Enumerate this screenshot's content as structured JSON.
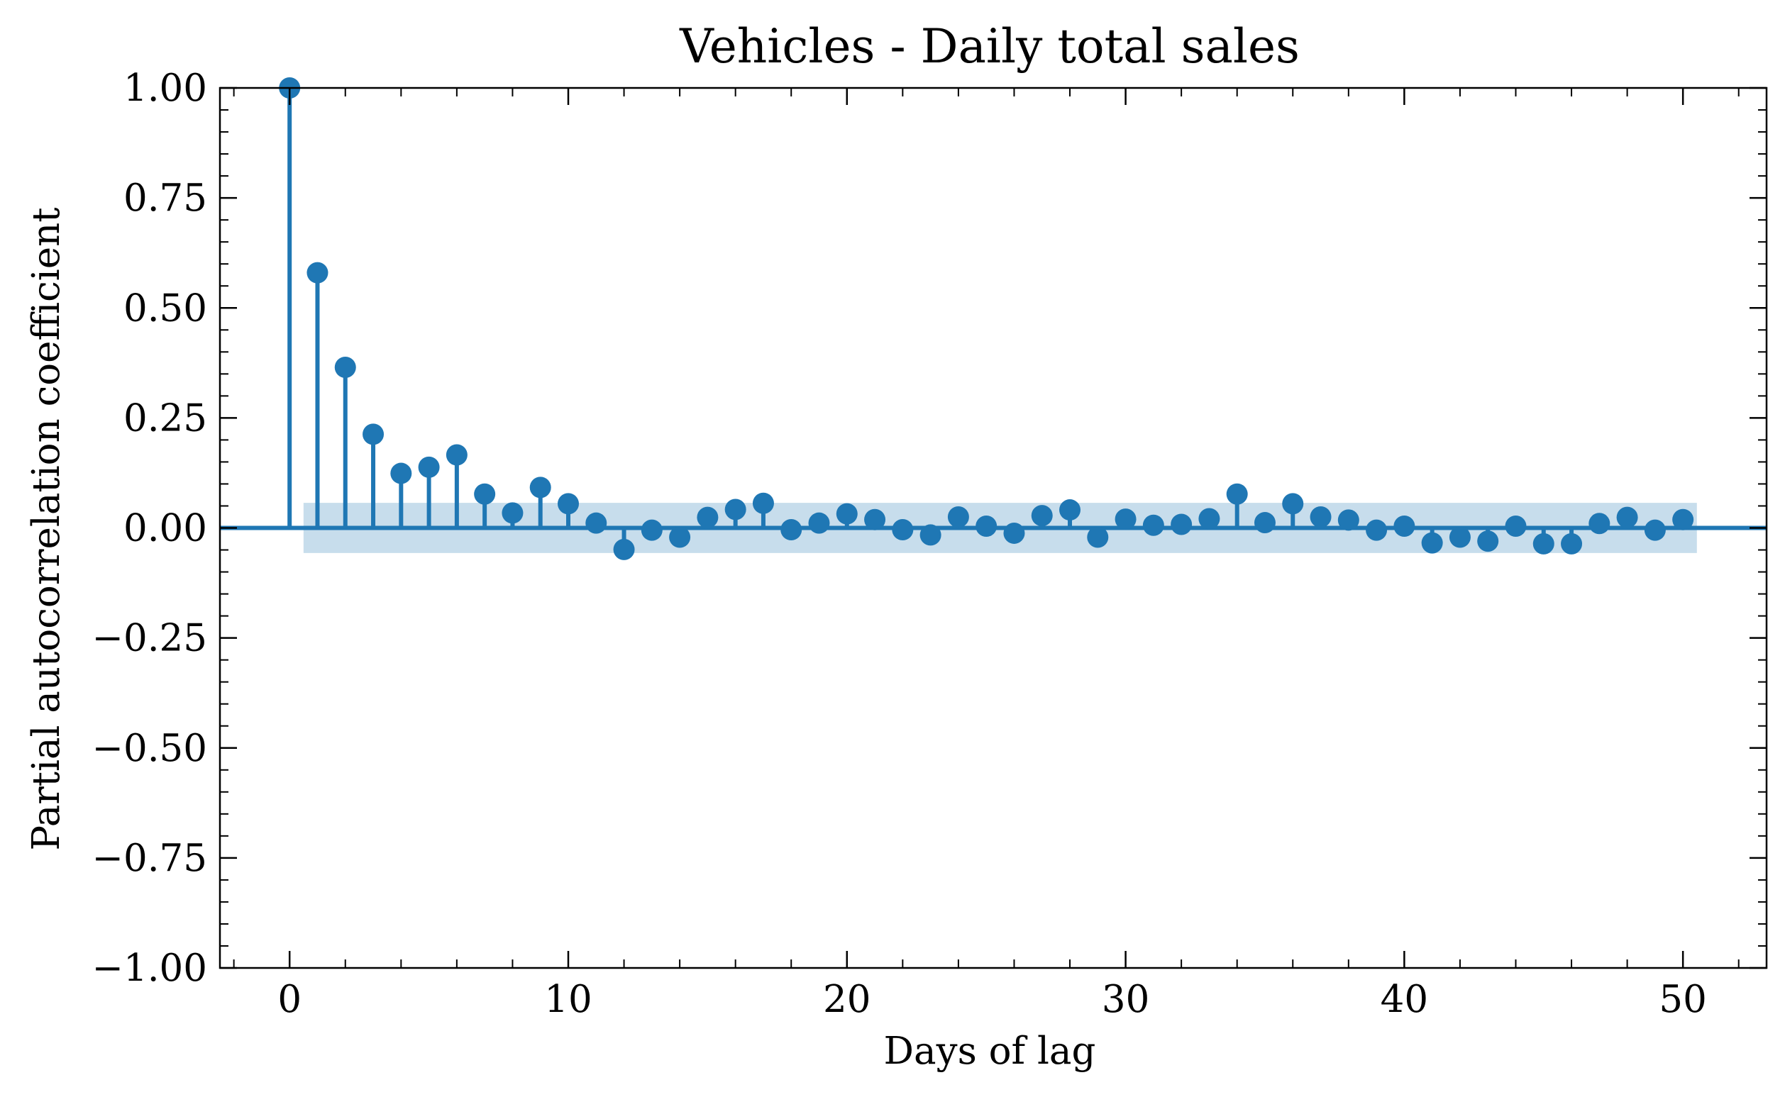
{
  "colors": {
    "series": "#1f77b4",
    "band": "#1f77b4",
    "axes": "#000000",
    "background": "#ffffff"
  },
  "chart_data": {
    "type": "stem",
    "title": "Vehicles - Daily total sales",
    "xlabel": "Days of lag",
    "ylabel": "Partial autocorrelation coefficient",
    "xlim": [
      -2.5,
      53
    ],
    "ylim": [
      -1.0,
      1.0
    ],
    "xticks": [
      0,
      10,
      20,
      30,
      40,
      50
    ],
    "xtick_labels": [
      "0",
      "10",
      "20",
      "30",
      "40",
      "50"
    ],
    "yticks": [
      -1.0,
      -0.75,
      -0.5,
      -0.25,
      0.0,
      0.25,
      0.5,
      0.75,
      1.0
    ],
    "ytick_labels": [
      "−1.00",
      "−0.75",
      "−0.50",
      "−0.25",
      "0.00",
      "0.25",
      "0.50",
      "0.75",
      "1.00"
    ],
    "grid": false,
    "confidence_band": {
      "x_range": [
        0.5,
        50.5
      ],
      "y_range": [
        -0.057,
        0.057
      ]
    },
    "x": [
      0,
      1,
      2,
      3,
      4,
      5,
      6,
      7,
      8,
      9,
      10,
      11,
      12,
      13,
      14,
      15,
      16,
      17,
      18,
      19,
      20,
      21,
      22,
      23,
      24,
      25,
      26,
      27,
      28,
      29,
      30,
      31,
      32,
      33,
      34,
      35,
      36,
      37,
      38,
      39,
      40,
      41,
      42,
      43,
      44,
      45,
      46,
      47,
      48,
      49,
      50
    ],
    "values": [
      1.0,
      0.58,
      0.365,
      0.213,
      0.124,
      0.138,
      0.166,
      0.077,
      0.034,
      0.092,
      0.055,
      0.011,
      -0.049,
      -0.005,
      -0.021,
      0.024,
      0.042,
      0.056,
      -0.004,
      0.011,
      0.032,
      0.019,
      -0.004,
      -0.016,
      0.025,
      0.004,
      -0.012,
      0.028,
      0.041,
      -0.021,
      0.02,
      0.006,
      0.008,
      0.021,
      0.077,
      0.012,
      0.055,
      0.025,
      0.018,
      -0.005,
      0.004,
      -0.034,
      -0.021,
      -0.03,
      0.004,
      -0.036,
      -0.036,
      0.01,
      0.024,
      -0.005,
      0.019
    ]
  }
}
